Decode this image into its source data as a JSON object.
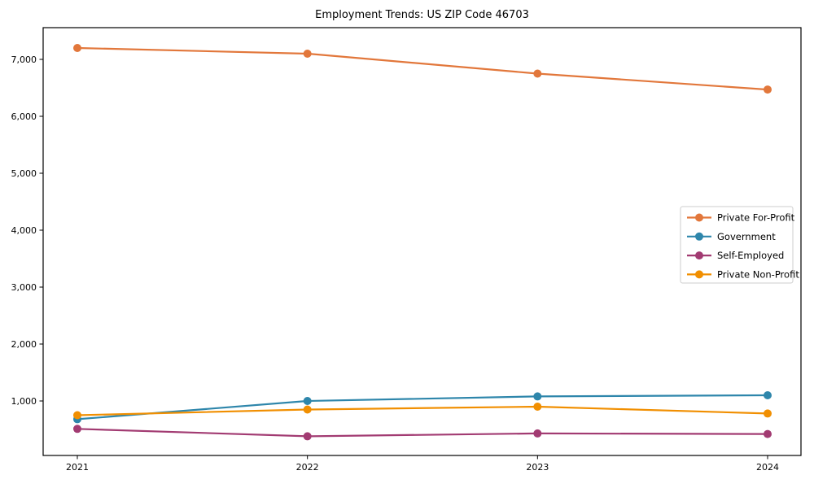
{
  "title": "Employment Trends: US ZIP Code 46703",
  "chart_data": {
    "type": "line",
    "title": "Employment Trends: US ZIP Code 46703",
    "xlabel": "",
    "ylabel": "",
    "x": [
      2021,
      2022,
      2023,
      2024
    ],
    "x_labels": [
      "2021",
      "2022",
      "2023",
      "2024"
    ],
    "series": [
      {
        "name": "Private For-Profit",
        "color": "#E2773B",
        "values": [
          7200,
          7100,
          6750,
          6470
        ]
      },
      {
        "name": "Government",
        "color": "#2E86AB",
        "values": [
          680,
          1000,
          1080,
          1100
        ]
      },
      {
        "name": "Self-Employed",
        "color": "#A23B72",
        "values": [
          510,
          380,
          430,
          420
        ]
      },
      {
        "name": "Private Non-Profit",
        "color": "#F18F01",
        "values": [
          750,
          850,
          900,
          780
        ]
      }
    ],
    "yticks": [
      1000,
      2000,
      3000,
      4000,
      5000,
      6000,
      7000
    ],
    "ytick_labels": [
      "1,000",
      "2,000",
      "3,000",
      "4,000",
      "5,000",
      "6,000",
      "7,000"
    ],
    "ylim": [
      43,
      7557
    ],
    "grid": false,
    "legend_position": "center-right",
    "marker": "circle"
  }
}
